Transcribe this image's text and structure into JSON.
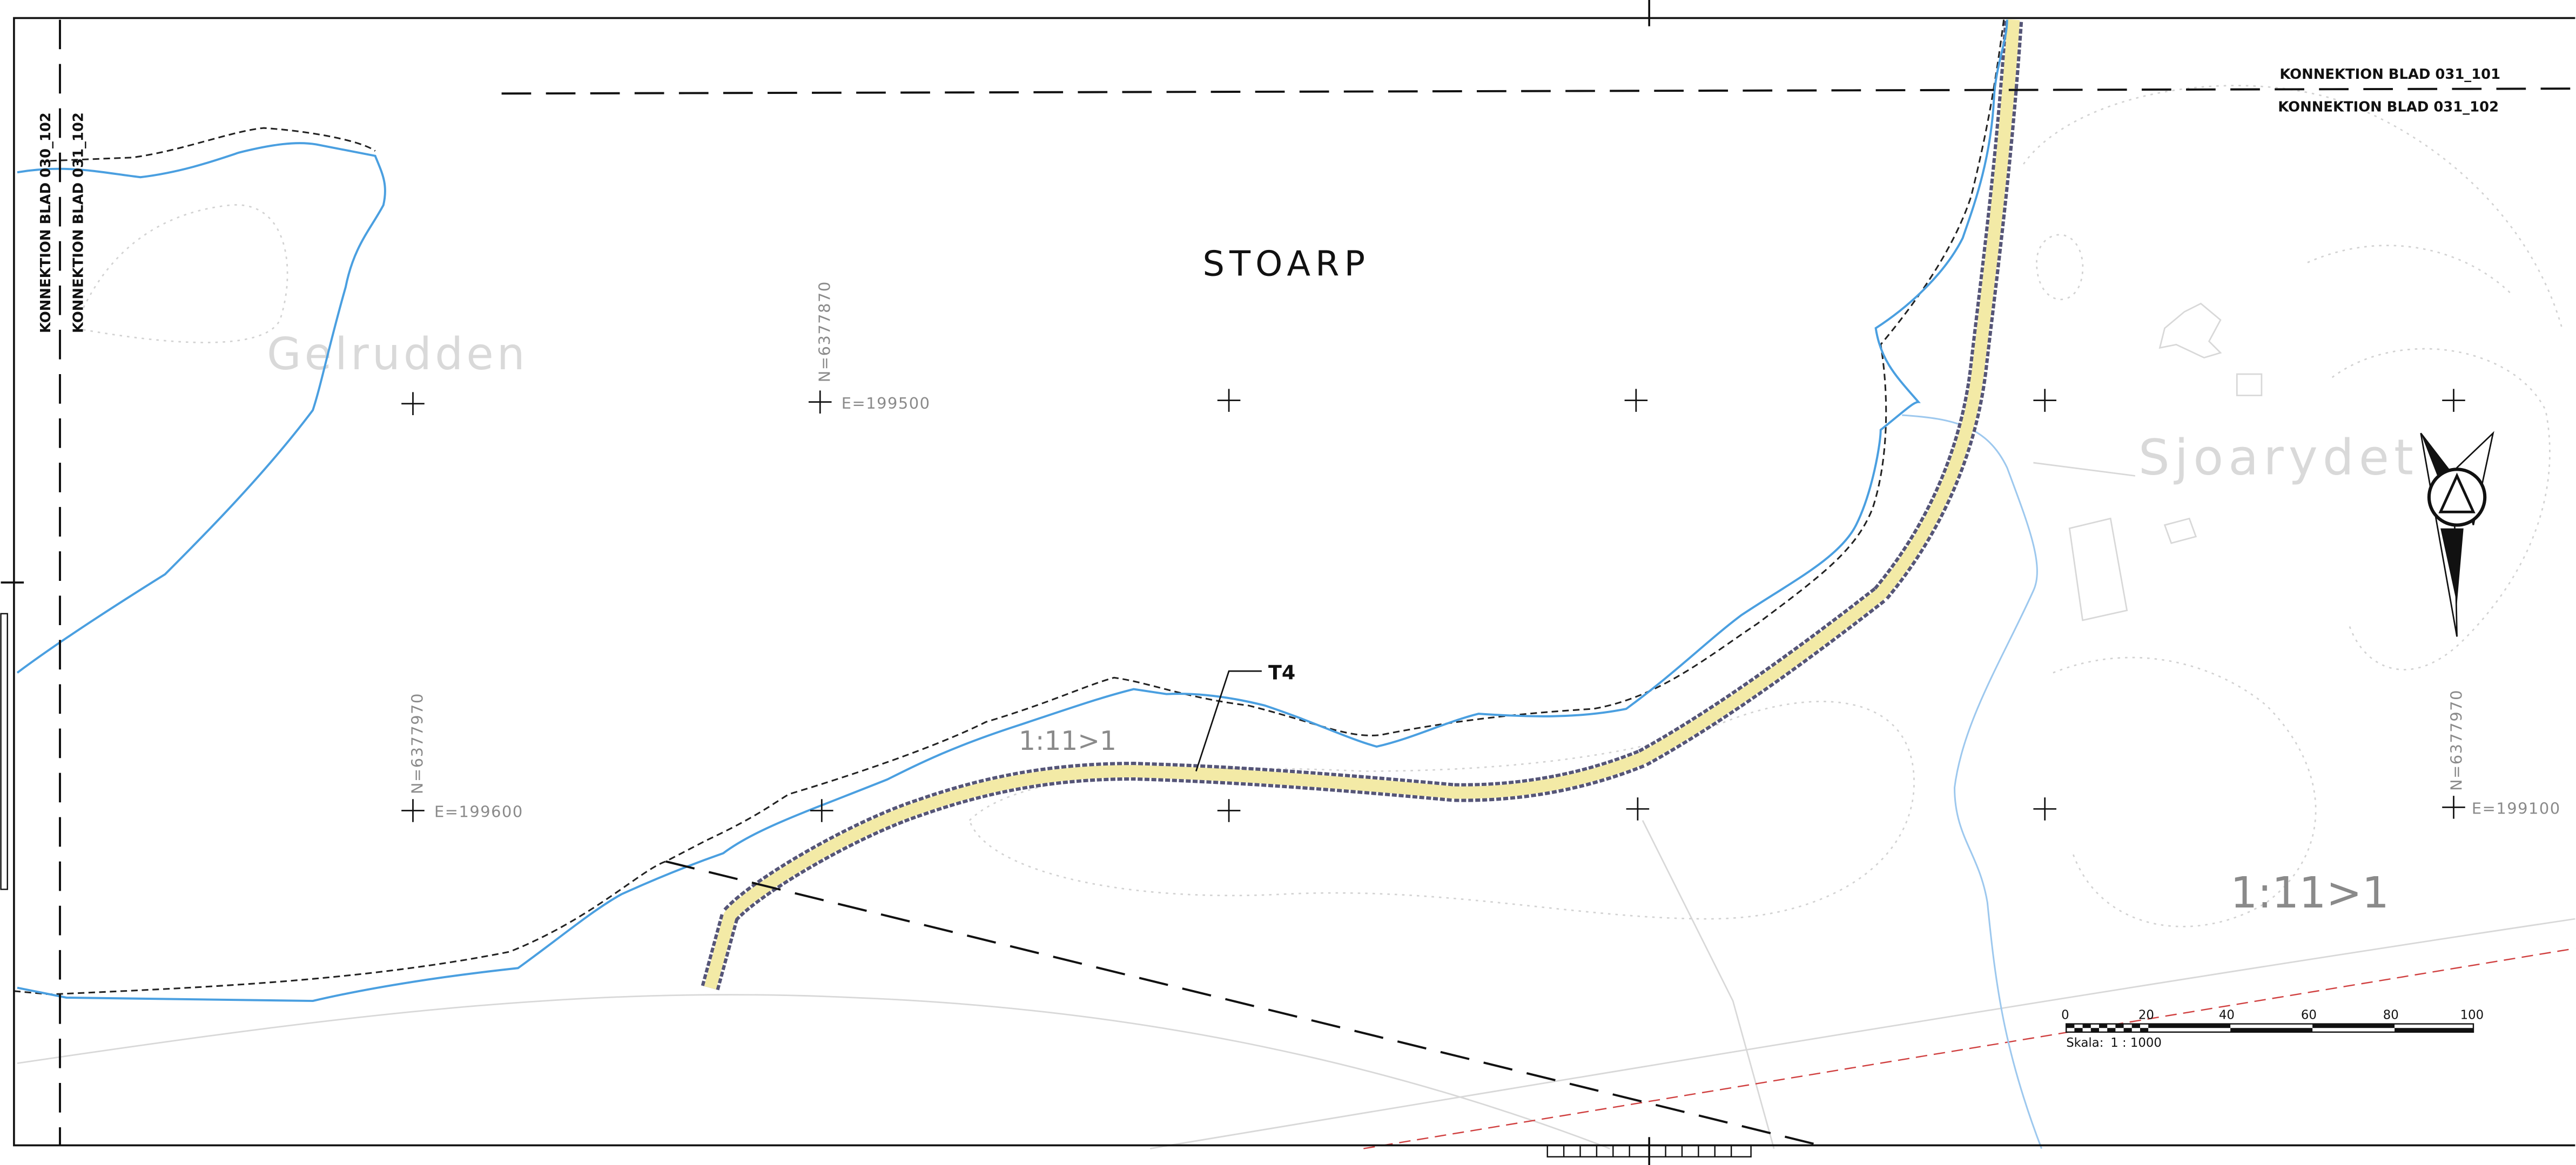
{
  "colors": {
    "paper": "#ffffff",
    "frame": "#111111",
    "stream": "#4a9fe0",
    "stream_light": "#9dc8ee",
    "road_fill": "#f3eaa6",
    "road_edge": "#666688",
    "bank_dashed": "#222222",
    "boundary_dashed": "#111111",
    "contour_dotted": "#d4d4d4",
    "background_detail": "#dcdcdc",
    "property_line": "#d04040"
  },
  "sheet_connections": {
    "left_top": "KONNEKTION BLAD 030_102",
    "left_bottom": "KONNEKTION BLAD 031_102",
    "right_top": "KONNEKTION BLAD 031_101",
    "right_bottom": "KONNEKTION BLAD 031_102"
  },
  "place_names": {
    "main": "STOARP",
    "faint_left": "Gelrudden",
    "faint_right": "Sjoarydet"
  },
  "road_label": "T4",
  "slope_labels": {
    "middle": "1:11>1",
    "right": "1:11>1"
  },
  "grid_labels": {
    "n_1": "N=6377870",
    "e_1": "E=199500",
    "n_2": "N=6377970",
    "e_2": "E=199600",
    "n_3": "N=6377970",
    "e_3": "E=199100"
  },
  "scale_bar": {
    "ticks": [
      "0",
      "20",
      "40",
      "60",
      "80",
      "100"
    ],
    "label": "Skala:",
    "value": "1 : 1000"
  },
  "icons": {
    "north_arrow": "north-arrow-icon",
    "grid_cross": "grid-cross-icon"
  }
}
